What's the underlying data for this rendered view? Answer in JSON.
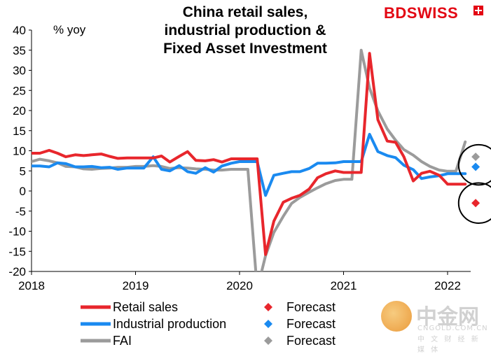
{
  "brand": {
    "bd": "BD",
    "swiss": "SWISS",
    "icon": "swiss-cross-icon"
  },
  "watermark": {
    "cn": "中金网",
    "en": "CNGOLD.COM.CN",
    "sub": "中 文 财 经 新 媒 体",
    "icon": "gold-coin-icon"
  },
  "colors": {
    "retail": "#e8262c",
    "industrial": "#1a8af0",
    "fai": "#9b9b9b"
  },
  "chart_data": {
    "type": "line",
    "title": [
      "China retail sales,",
      "industrial production &",
      "Fixed Asset Investment"
    ],
    "ylabel": "% yoy",
    "ylim": [
      -20,
      40
    ],
    "yticks": [
      40,
      35,
      30,
      25,
      20,
      15,
      10,
      5,
      0,
      -5,
      -10,
      -15,
      -20
    ],
    "xlim": [
      2018.0,
      2022.45
    ],
    "xticks": [
      2018,
      2019,
      2020,
      2021,
      2022
    ],
    "xtick_labels": [
      "2018",
      "2019",
      "2020",
      "2021",
      "2022"
    ],
    "grid": false,
    "legend_position": "bottom",
    "series": [
      {
        "name": "Retail sales",
        "key": "retail",
        "x": [
          2018.0,
          2018.08,
          2018.17,
          2018.25,
          2018.33,
          2018.42,
          2018.5,
          2018.58,
          2018.67,
          2018.75,
          2018.83,
          2018.92,
          2019.0,
          2019.08,
          2019.17,
          2019.25,
          2019.33,
          2019.42,
          2019.5,
          2019.58,
          2019.67,
          2019.75,
          2019.83,
          2019.92,
          2020.0,
          2020.08,
          2020.17,
          2020.25,
          2020.33,
          2020.42,
          2020.5,
          2020.58,
          2020.67,
          2020.75,
          2020.83,
          2020.92,
          2021.0,
          2021.08,
          2021.17,
          2021.25,
          2021.33,
          2021.42,
          2021.5,
          2021.58,
          2021.67,
          2021.75,
          2021.83,
          2021.92,
          2022.0,
          2022.08,
          2022.17
        ],
        "y": [
          9.4,
          9.4,
          10.1,
          9.4,
          8.5,
          9.0,
          8.8,
          9.0,
          9.2,
          8.6,
          8.1,
          8.2,
          8.2,
          8.2,
          8.2,
          8.7,
          7.2,
          8.6,
          9.8,
          7.6,
          7.5,
          7.8,
          7.2,
          8.0,
          8.0,
          8.0,
          8.0,
          -15.8,
          -7.5,
          -2.8,
          -1.8,
          -1.1,
          0.5,
          3.3,
          4.3,
          5.0,
          4.6,
          4.6,
          4.6,
          34.2,
          17.7,
          12.4,
          12.1,
          8.5,
          2.5,
          4.4,
          4.9,
          3.9,
          1.7,
          1.7,
          1.7
        ]
      },
      {
        "name": "Industrial production",
        "key": "industrial",
        "x": [
          2018.0,
          2018.08,
          2018.17,
          2018.25,
          2018.33,
          2018.42,
          2018.5,
          2018.58,
          2018.67,
          2018.75,
          2018.83,
          2018.92,
          2019.0,
          2019.08,
          2019.17,
          2019.25,
          2019.33,
          2019.42,
          2019.5,
          2019.58,
          2019.67,
          2019.75,
          2019.83,
          2019.92,
          2020.0,
          2020.08,
          2020.17,
          2020.25,
          2020.33,
          2020.42,
          2020.5,
          2020.58,
          2020.67,
          2020.75,
          2020.83,
          2020.92,
          2021.0,
          2021.08,
          2021.17,
          2021.25,
          2021.33,
          2021.42,
          2021.5,
          2021.58,
          2021.67,
          2021.75,
          2021.83,
          2021.92,
          2022.0,
          2022.08,
          2022.17
        ],
        "y": [
          6.2,
          6.2,
          6.0,
          7.0,
          6.8,
          6.0,
          6.0,
          6.1,
          5.8,
          5.9,
          5.4,
          5.7,
          5.7,
          5.7,
          8.5,
          5.4,
          5.0,
          6.3,
          4.8,
          4.4,
          5.8,
          4.7,
          6.2,
          6.9,
          7.3,
          7.3,
          7.3,
          -1.1,
          3.9,
          4.4,
          4.8,
          4.8,
          5.6,
          6.9,
          6.9,
          7.0,
          7.3,
          7.3,
          7.3,
          14.1,
          9.8,
          8.8,
          8.3,
          6.4,
          5.3,
          3.1,
          3.5,
          3.8,
          4.3,
          4.3,
          4.3
        ]
      },
      {
        "name": "FAI",
        "key": "fai",
        "x": [
          2018.0,
          2018.08,
          2018.17,
          2018.25,
          2018.33,
          2018.42,
          2018.5,
          2018.58,
          2018.67,
          2018.75,
          2018.83,
          2018.92,
          2019.0,
          2019.08,
          2019.17,
          2019.25,
          2019.33,
          2019.42,
          2019.5,
          2019.58,
          2019.67,
          2019.75,
          2019.83,
          2019.92,
          2020.0,
          2020.08,
          2020.17,
          2020.25,
          2020.33,
          2020.42,
          2020.5,
          2020.58,
          2020.67,
          2020.75,
          2020.83,
          2020.92,
          2021.0,
          2021.08,
          2021.17,
          2021.25,
          2021.33,
          2021.42,
          2021.5,
          2021.58,
          2021.67,
          2021.75,
          2021.83,
          2021.92,
          2022.0,
          2022.08,
          2022.17
        ],
        "y": [
          7.3,
          7.9,
          7.5,
          7.0,
          6.1,
          6.0,
          5.5,
          5.4,
          5.6,
          5.7,
          5.9,
          5.9,
          6.1,
          6.1,
          6.3,
          6.1,
          5.6,
          5.8,
          5.7,
          5.5,
          5.4,
          5.2,
          5.2,
          5.4,
          5.4,
          5.4,
          -24.5,
          -16.1,
          -10.3,
          -6.3,
          -3.1,
          -1.6,
          -0.3,
          0.8,
          1.8,
          2.6,
          2.9,
          2.9,
          35.0,
          25.6,
          19.9,
          15.4,
          12.6,
          10.3,
          8.9,
          7.3,
          6.1,
          5.2,
          4.9,
          4.9,
          12.2
        ]
      }
    ],
    "forecasts": [
      {
        "name": "Forecast",
        "key": "retail",
        "x": 2022.27,
        "y": -3.0
      },
      {
        "name": "Forecast",
        "key": "industrial",
        "x": 2022.27,
        "y": 6.0
      },
      {
        "name": "Forecast",
        "key": "fai",
        "x": 2022.27,
        "y": 8.5
      }
    ],
    "annotations": [
      {
        "type": "circle",
        "cx": 2022.3,
        "cy": 6.5,
        "ry_units": 5.0
      },
      {
        "type": "circle",
        "cx": 2022.3,
        "cy": -3.0,
        "ry_units": 5.0
      }
    ]
  }
}
